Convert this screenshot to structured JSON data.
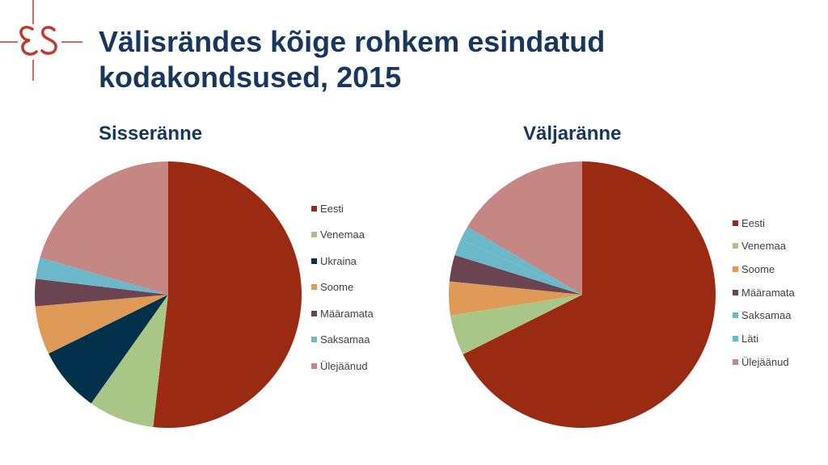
{
  "title_lines": [
    "Välisrändes kõige rohkem esindatud",
    "kodakondsused, 2015"
  ],
  "colors": {
    "title": "#17375e",
    "logo": "#c0392b",
    "Eesti": "#9b2a12",
    "Venemaa": "#a8c686",
    "Ukraina": "#03304a",
    "Soome": "#df9a58",
    "Määramata": "#6b4452",
    "Saksamaa": "#6bb8c8",
    "Läti": "#6bb8c8",
    "Ülejäänud": "#c48784"
  },
  "chart_data": [
    {
      "type": "pie",
      "title": "Sisseränne",
      "legend_position": "right",
      "labels": [
        "Eesti",
        "Venemaa",
        "Ukraina",
        "Soome",
        "Määramata",
        "Saksamaa",
        "Ülejäänud"
      ],
      "values": [
        51.8,
        8.0,
        7.9,
        5.9,
        3.3,
        2.6,
        20.5
      ]
    },
    {
      "type": "pie",
      "title": "Väljaränne",
      "legend_position": "right",
      "labels": [
        "Eesti",
        "Venemaa",
        "Soome",
        "Määramata",
        "Saksamaa",
        "Läti",
        "Ülejäänud"
      ],
      "values": [
        67.6,
        4.9,
        4.1,
        3.2,
        2.0,
        1.7,
        16.5
      ]
    }
  ]
}
